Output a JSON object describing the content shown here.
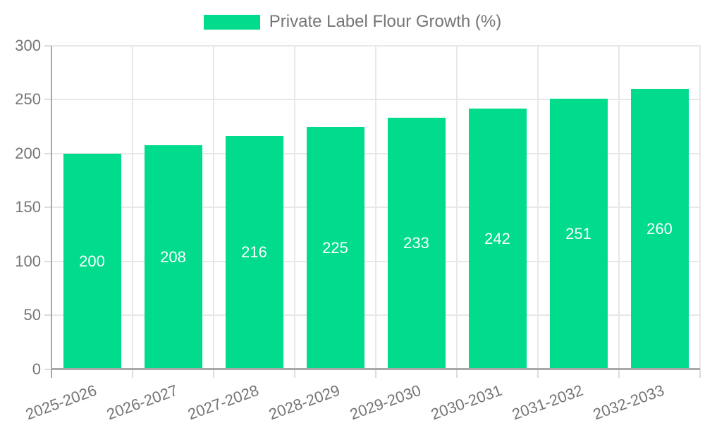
{
  "chart_data": {
    "type": "bar",
    "title": "Private Label Flour Growth (%)",
    "legend": {
      "label": "Private Label Flour Growth (%)",
      "position": "top"
    },
    "categories": [
      "2025-2026",
      "2026-2027",
      "2027-2028",
      "2028-2029",
      "2029-2030",
      "2030-2031",
      "2031-2032",
      "2032-2033"
    ],
    "values": [
      200,
      208,
      216,
      225,
      233,
      242,
      251,
      260
    ],
    "xlabel": "",
    "ylabel": "",
    "ylim": [
      0,
      300
    ],
    "yticks": [
      0,
      50,
      100,
      150,
      200,
      250,
      300
    ],
    "grid": true,
    "value_labels_shown": true,
    "colors": {
      "bar": "#00db8c",
      "axis_text": "#757575",
      "grid": "#e8e8e8",
      "axis_line": "#a8a8a8",
      "value_label": "#ffffff"
    }
  }
}
